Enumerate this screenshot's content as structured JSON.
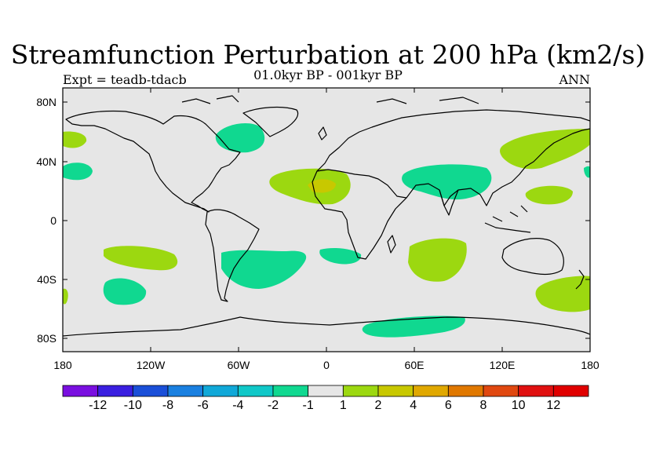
{
  "title": "Streamfunction Perturbation at 200 hPa (km2/s)",
  "subtitle": "01.0kyr BP - 001kyr BP",
  "left_label": "Expt = teadb-tdacb",
  "right_label": "ANN",
  "lat_ticks": [
    "80N",
    "40N",
    "0",
    "40S",
    "80S"
  ],
  "lon_ticks": [
    "180",
    "120W",
    "60W",
    "0",
    "60E",
    "120E",
    "180"
  ],
  "colorbar": {
    "labels": [
      "-12",
      "-10",
      "-8",
      "-6",
      "-4",
      "-2",
      "-1",
      "1",
      "2",
      "4",
      "6",
      "8",
      "10",
      "12"
    ],
    "colors": [
      "#7a0fe0",
      "#3a1fe0",
      "#1a4fd8",
      "#1a80e0",
      "#10a8d8",
      "#10c8c8",
      "#10d890",
      "#e6e6e6",
      "#9cd810",
      "#c8c800",
      "#e0a800",
      "#e07800",
      "#e04810",
      "#e01010",
      "#e00000"
    ]
  },
  "colors": {
    "ocean": "#e6e6e6",
    "green_neg": "#10d890",
    "yellowgreen_pos": "#9cd810",
    "yellow_pos": "#c8c800"
  }
}
